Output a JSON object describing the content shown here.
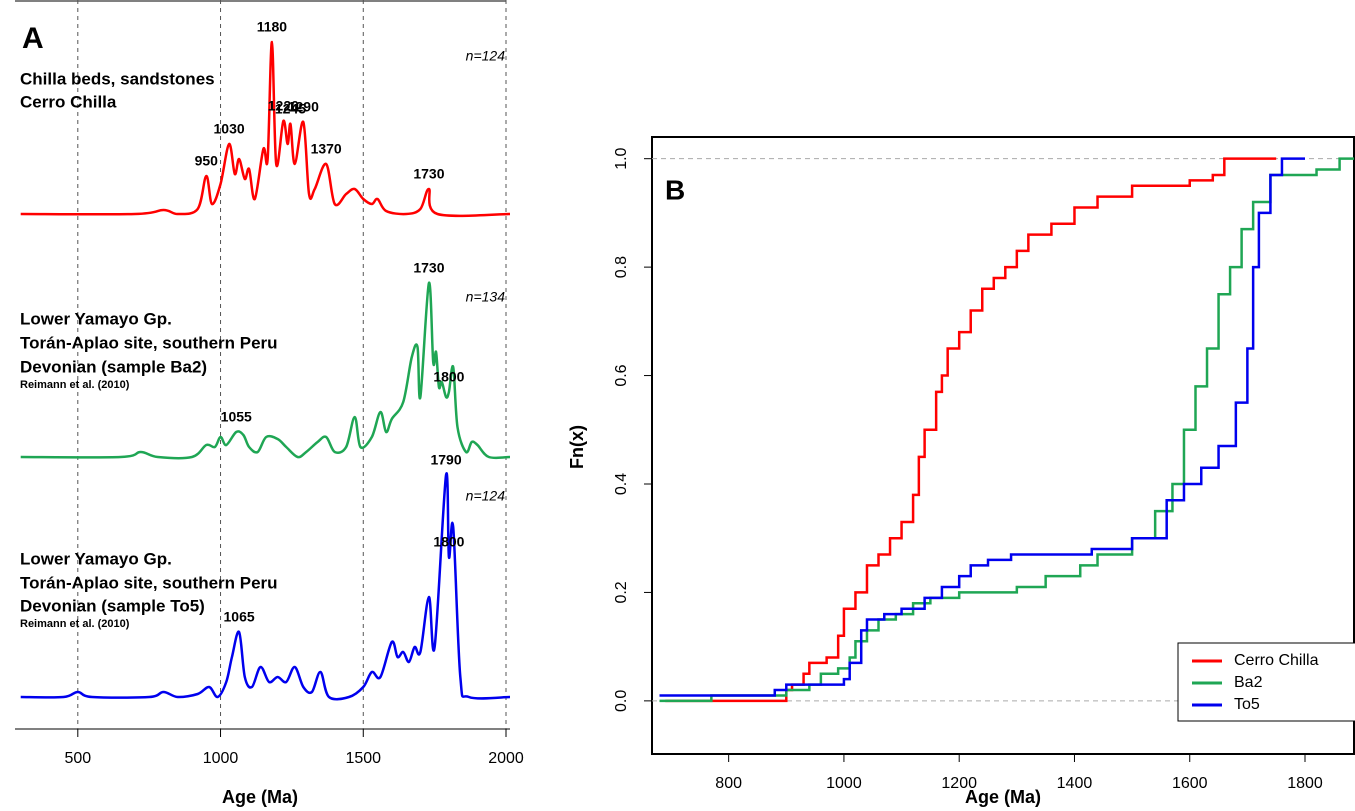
{
  "chart_data": [
    {
      "type": "density",
      "panel": "A",
      "xlabel": "Age (Ma)",
      "xlim": [
        280,
        2014
      ],
      "xticks": [
        500,
        1000,
        1500,
        2000
      ],
      "grid": true,
      "series": [
        {
          "name": "Chilla beds, sandstones",
          "lines": [
            "Chilla beds, sandstones",
            "Cerro Chilla"
          ],
          "n": "n=124",
          "color": "#ff0000",
          "x": [
            300,
            700,
            800,
            850,
            920,
            950,
            970,
            1000,
            1030,
            1050,
            1065,
            1085,
            1100,
            1120,
            1150,
            1165,
            1180,
            1195,
            1220,
            1235,
            1245,
            1260,
            1290,
            1310,
            1330,
            1370,
            1400,
            1440,
            1470,
            1500,
            1530,
            1550,
            1580,
            1650,
            1700,
            1730,
            1760,
            2014
          ],
          "y": [
            0,
            0,
            4,
            0,
            5,
            38,
            10,
            30,
            70,
            40,
            55,
            35,
            45,
            15,
            65,
            55,
            172,
            50,
            93,
            70,
            90,
            50,
            92,
            20,
            25,
            50,
            10,
            20,
            25,
            15,
            10,
            15,
            3,
            0,
            5,
            25,
            0,
            0
          ],
          "peak_labels": [
            950,
            1030,
            1180,
            1220,
            1245,
            1290,
            1370,
            1730
          ]
        },
        {
          "name": "Lower Yamayo Gp.",
          "lines": [
            "Lower Yamayo Gp.",
            "Torán-Aplao site, southern Peru",
            "Devonian (sample Ba2)"
          ],
          "note": "Reimann et al. (2010)",
          "n": "n=134",
          "color": "#1fa654",
          "x": [
            300,
            650,
            720,
            780,
            900,
            950,
            980,
            1000,
            1020,
            1055,
            1080,
            1100,
            1130,
            1160,
            1200,
            1230,
            1270,
            1300,
            1340,
            1370,
            1400,
            1440,
            1470,
            1490,
            1530,
            1560,
            1580,
            1600,
            1640,
            1670,
            1690,
            1700,
            1730,
            1745,
            1755,
            1765,
            1775,
            1790,
            1800,
            1815,
            1830,
            1860,
            1880,
            1900,
            1940,
            2014
          ],
          "y": [
            0,
            0,
            5,
            0,
            0,
            12,
            10,
            20,
            12,
            25,
            22,
            10,
            5,
            20,
            18,
            10,
            0,
            5,
            15,
            20,
            5,
            10,
            40,
            10,
            20,
            45,
            25,
            38,
            55,
            100,
            110,
            60,
            174,
            95,
            105,
            70,
            75,
            60,
            65,
            90,
            30,
            5,
            15,
            12,
            0,
            0
          ],
          "peak_labels": [
            1055,
            1730,
            1800
          ]
        },
        {
          "name": "Lower Yamayo Gp.",
          "lines": [
            "Lower Yamayo Gp.",
            "Torán-Aplao site, southern Peru",
            "Devonian (sample To5)"
          ],
          "note": "Reimann et al. (2010)",
          "n": "n=124",
          "color": "#0000ee",
          "x": [
            300,
            450,
            500,
            550,
            750,
            800,
            850,
            920,
            960,
            990,
            1020,
            1040,
            1065,
            1085,
            1110,
            1140,
            1170,
            1200,
            1230,
            1260,
            1290,
            1320,
            1350,
            1380,
            1450,
            1500,
            1530,
            1560,
            1600,
            1620,
            1640,
            1660,
            1680,
            1700,
            1730,
            1750,
            1790,
            1800,
            1815,
            1840,
            1870,
            2014
          ],
          "y": [
            0,
            0,
            5,
            0,
            0,
            5,
            0,
            3,
            10,
            0,
            15,
            40,
            65,
            20,
            10,
            30,
            15,
            20,
            15,
            30,
            10,
            5,
            25,
            0,
            0,
            10,
            25,
            20,
            55,
            40,
            45,
            35,
            50,
            45,
            100,
            50,
            222,
            140,
            170,
            20,
            0,
            0
          ],
          "peak_labels": [
            1065,
            1790,
            1800
          ]
        }
      ]
    },
    {
      "type": "ecdf",
      "panel": "B",
      "xlabel": "Age (Ma)",
      "ylabel": "Fn(x)",
      "xlim": [
        667,
        1885
      ],
      "ylim": [
        -0.098,
        1.04
      ],
      "xticks": [
        800,
        1000,
        1200,
        1400,
        1600,
        1800
      ],
      "yticks": [
        {
          "value": 0,
          "label": "0.0"
        },
        0.2,
        0.4,
        0.6,
        0.8,
        {
          "value": 1,
          "label": "1.0"
        }
      ],
      "legend": "bottom-right",
      "series": [
        {
          "name": "Cerro Chilla",
          "color": "#ff0000",
          "x": [
            690,
            715,
            900,
            910,
            930,
            940,
            970,
            990,
            1000,
            1020,
            1040,
            1060,
            1080,
            1100,
            1120,
            1130,
            1140,
            1160,
            1170,
            1180,
            1200,
            1220,
            1240,
            1260,
            1280,
            1300,
            1320,
            1360,
            1400,
            1440,
            1500,
            1600,
            1640,
            1660,
            1750
          ],
          "y": [
            0,
            0,
            0.02,
            0.03,
            0.05,
            0.07,
            0.08,
            0.12,
            0.17,
            0.2,
            0.25,
            0.27,
            0.3,
            0.33,
            0.38,
            0.45,
            0.5,
            0.57,
            0.6,
            0.65,
            0.68,
            0.72,
            0.76,
            0.78,
            0.8,
            0.83,
            0.86,
            0.88,
            0.91,
            0.93,
            0.95,
            0.96,
            0.97,
            1,
            1
          ]
        },
        {
          "name": "Ba2",
          "color": "#1fa654",
          "x": [
            680,
            770,
            900,
            940,
            960,
            990,
            1010,
            1020,
            1040,
            1060,
            1090,
            1120,
            1150,
            1200,
            1300,
            1350,
            1410,
            1440,
            1500,
            1540,
            1570,
            1590,
            1610,
            1630,
            1650,
            1670,
            1690,
            1710,
            1740,
            1820,
            1860,
            1885
          ],
          "y": [
            0,
            0.01,
            0.02,
            0.03,
            0.05,
            0.06,
            0.08,
            0.11,
            0.13,
            0.15,
            0.16,
            0.18,
            0.19,
            0.2,
            0.21,
            0.23,
            0.25,
            0.27,
            0.3,
            0.35,
            0.4,
            0.5,
            0.58,
            0.65,
            0.75,
            0.8,
            0.87,
            0.92,
            0.97,
            0.98,
            1,
            1
          ]
        },
        {
          "name": "To5",
          "color": "#0000ee",
          "x": [
            680,
            790,
            880,
            900,
            1000,
            1010,
            1030,
            1040,
            1070,
            1100,
            1140,
            1170,
            1200,
            1220,
            1250,
            1290,
            1430,
            1500,
            1560,
            1590,
            1620,
            1650,
            1680,
            1700,
            1710,
            1720,
            1740,
            1760,
            1800
          ],
          "y": [
            0.01,
            0.01,
            0.02,
            0.03,
            0.04,
            0.07,
            0.13,
            0.15,
            0.16,
            0.17,
            0.19,
            0.21,
            0.23,
            0.25,
            0.26,
            0.27,
            0.28,
            0.3,
            0.37,
            0.4,
            0.43,
            0.47,
            0.55,
            0.65,
            0.8,
            0.9,
            0.97,
            1,
            1
          ]
        }
      ]
    }
  ]
}
